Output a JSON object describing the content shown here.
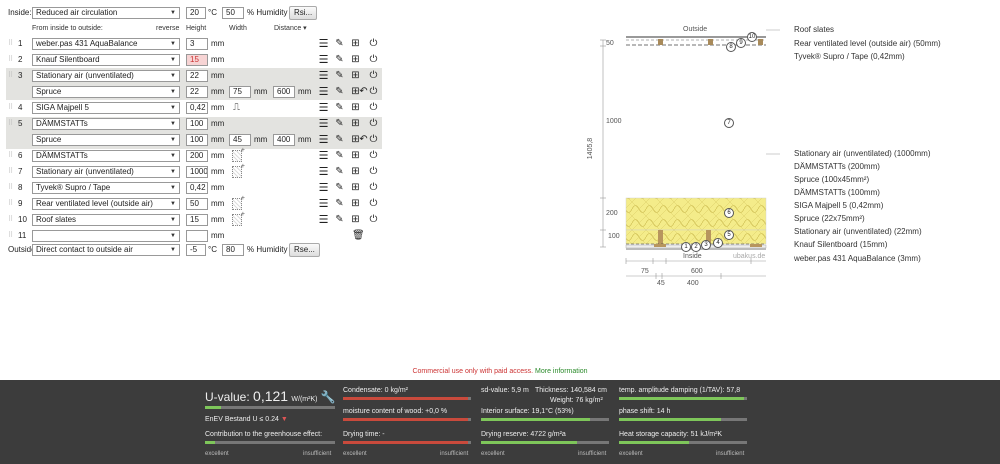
{
  "inside": {
    "label": "Inside:",
    "climate": "Reduced air circulation",
    "temp": "20",
    "temp_unit": "°C",
    "humidity": "50",
    "humidity_unit": "% Humidity",
    "rsi_button": "Rsi..."
  },
  "header": {
    "order_label": "From inside to outside:",
    "reverse_link": "reverse",
    "col_height": "Height",
    "col_width": "Width",
    "col_distance": "Distance"
  },
  "layers": [
    {
      "num": "1",
      "material": "weber.pas 431 AquaBalance",
      "height": "3",
      "unit": "mm"
    },
    {
      "num": "2",
      "material": "Knauf Silentboard",
      "height": "15",
      "unit": "mm"
    },
    {
      "num": "3",
      "material": "Stationary air (unventilated)",
      "height": "22",
      "unit": "mm"
    },
    {
      "num": "",
      "material": "Spruce",
      "height": "22",
      "unit": "mm",
      "width": "75",
      "width_unit": "mm",
      "distance": "600",
      "distance_unit": "mm"
    },
    {
      "num": "4",
      "material": "SIGA Majpell 5",
      "height": "0,42",
      "unit": "mm"
    },
    {
      "num": "5",
      "material": "DÄMMSTATTs",
      "height": "100",
      "unit": "mm"
    },
    {
      "num": "",
      "material": "Spruce",
      "height": "100",
      "unit": "mm",
      "width": "45",
      "width_unit": "mm",
      "distance": "400",
      "distance_unit": "mm"
    },
    {
      "num": "6",
      "material": "DÄMMSTATTs",
      "height": "200",
      "unit": "mm"
    },
    {
      "num": "7",
      "material": "Stationary air (unventilated)",
      "height": "1000",
      "unit": "mm"
    },
    {
      "num": "8",
      "material": "Tyvek® Supro / Tape",
      "height": "0,42",
      "unit": "mm"
    },
    {
      "num": "9",
      "material": "Rear ventilated level (outside air)",
      "height": "50",
      "unit": "mm"
    },
    {
      "num": "10",
      "material": "Roof slates",
      "height": "15",
      "unit": "mm"
    },
    {
      "num": "11",
      "material": "",
      "height": "",
      "unit": "mm"
    }
  ],
  "outside": {
    "label": "Outside",
    "climate": "Direct contact to outside air",
    "temp": "-5",
    "temp_unit": "°C",
    "humidity": "80",
    "humidity_unit": "% Humidity",
    "rse_button": "Rse..."
  },
  "diagram": {
    "top_label": "Outside",
    "bottom_label": "Inside",
    "watermark": "ubakus.de",
    "total_height": "1405,8",
    "dims_left": [
      "50",
      "1000",
      "200",
      "100"
    ],
    "dims_bottom_top": [
      "75",
      "600"
    ],
    "dims_bottom_bot": [
      "45",
      "400"
    ],
    "labels_top": [
      "Roof slates",
      "Rear ventilated level (outside air) (50mm)",
      "Tyvek® Supro / Tape (0,42mm)"
    ],
    "labels_bottom": [
      "Stationary air (unventilated) (1000mm)",
      "DÄMMSTATTs (200mm)",
      "Spruce (100x45mm²)",
      "DÄMMSTATTs (100mm)",
      "SIGA Majpell 5 (0,42mm)",
      "Spruce (22x75mm²)",
      "Stationary air (unventilated) (22mm)",
      "Knauf Silentboard (15mm)",
      "weber.pas 431 AquaBalance (3mm)"
    ],
    "circles": [
      "1",
      "2",
      "3",
      "4",
      "5",
      "6",
      "7",
      "8",
      "9",
      "10"
    ]
  },
  "notice": {
    "text": "Commercial use only with paid access.",
    "link": "More information"
  },
  "results": {
    "uvalue_label": "U-value:",
    "uvalue": "0,121",
    "uvalue_unit": "W/(m²K)",
    "enev": "EnEV Bestand U ≤ 0.24",
    "greenhouse": "Contribution to the greenhouse effect:",
    "scale_good": "excellent",
    "scale_bad": "insufficient",
    "condensate": "Condensate: 0 kg/m²",
    "moisture": "moisture content of wood: +0,0 %",
    "drying_time": "Drying time: -",
    "sd_value": "sd-value: 5,9 m",
    "thickness": "Thickness: 140,584 cm",
    "weight": "Weight: 76 kg/m²",
    "interior_surface": "Interior surface: 19,1°C (53%)",
    "drying_reserve": "Drying reserve: 4722 g/m²a",
    "temp_damping": "temp. amplitude damping (1/TAV): 57,8",
    "phase_shift": "phase shift: 14 h",
    "heat_storage": "Heat storage capacity: 51 kJ/m²K",
    "levels": {
      "uvalue": 0.12,
      "greenhouse": 0.08,
      "condensate": 0.98,
      "moisture": 0.98,
      "drying_time": 0.98,
      "interior": 0.85,
      "drying_reserve": 0.75,
      "damping": 0.98,
      "phase": 0.8,
      "storage": 0.55
    }
  }
}
